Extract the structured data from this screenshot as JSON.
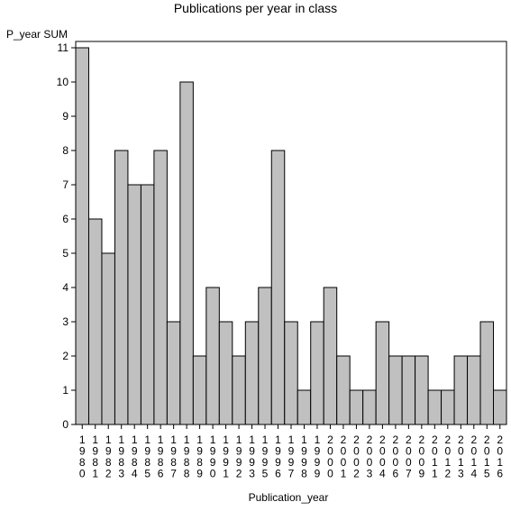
{
  "chart_data": {
    "type": "bar",
    "title": "Publications per year in class",
    "ylabel": "P_year SUM",
    "xlabel": "Publication_year",
    "categories": [
      "1980",
      "1981",
      "1982",
      "1983",
      "1984",
      "1985",
      "1986",
      "1987",
      "1988",
      "1989",
      "1990",
      "1991",
      "1992",
      "1993",
      "1995",
      "1996",
      "1997",
      "1998",
      "1999",
      "2000",
      "2001",
      "2002",
      "2003",
      "2004",
      "2006",
      "2007",
      "2009",
      "2011",
      "2012",
      "2013",
      "2014",
      "2015",
      "2016"
    ],
    "values": [
      11,
      6,
      5,
      8,
      7,
      7,
      8,
      3,
      10,
      2,
      4,
      3,
      2,
      3,
      4,
      8,
      3,
      1,
      3,
      4,
      2,
      1,
      1,
      3,
      2,
      2,
      2,
      1,
      1,
      2,
      2,
      3,
      1
    ],
    "ylim": [
      0,
      11
    ],
    "yticks": [
      0,
      1,
      2,
      3,
      4,
      5,
      6,
      7,
      8,
      9,
      10,
      11
    ],
    "bar_color": "#c0c0c0",
    "grid": false,
    "legend": "none"
  }
}
